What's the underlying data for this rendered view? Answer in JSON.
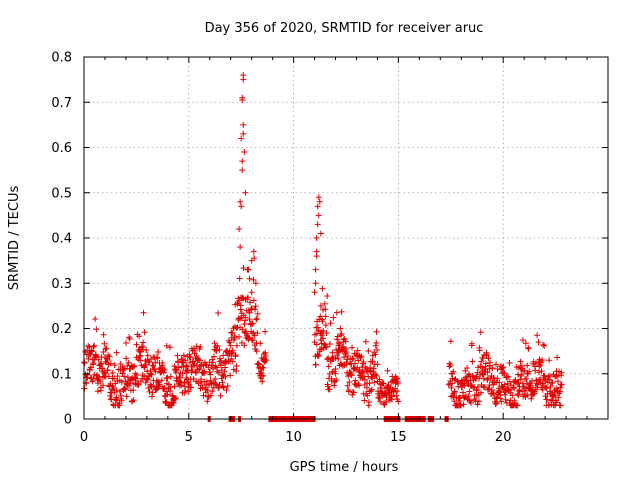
{
  "chart_data": {
    "type": "scatter",
    "title": "Day 356 of 2020, SRMTID for receiver aruc",
    "xlabel": "GPS time / hours",
    "ylabel": "SRMTID / TECUs",
    "xlim": [
      0,
      25
    ],
    "ylim": [
      0,
      0.8
    ],
    "xticks": [
      "0",
      "5",
      "10",
      "15",
      "20"
    ],
    "yticks": [
      "0",
      "0.1",
      "0.2",
      "0.3",
      "0.4",
      "0.5",
      "0.6",
      "0.7",
      "0.8"
    ],
    "grid": true,
    "marker": "+",
    "color": "#e00000",
    "segments": [
      {
        "x_start": 0.0,
        "x_end": 6.2,
        "base": 0.095,
        "spread": 0.04,
        "noise": 0.045
      },
      {
        "x_start": 6.2,
        "x_end": 7.3,
        "base": 0.13,
        "spread": 0.05,
        "noise": 0.05
      },
      {
        "x_start": 7.3,
        "x_end": 8.3,
        "base": 0.2,
        "spread": 0.06,
        "noise": 0.06
      },
      {
        "x_start": 8.3,
        "x_end": 8.7,
        "base": 0.13,
        "spread": 0.03,
        "noise": 0.03
      },
      {
        "x_start": 11.0,
        "x_end": 11.6,
        "base": 0.2,
        "spread": 0.05,
        "noise": 0.05
      },
      {
        "x_start": 11.6,
        "x_end": 14.0,
        "base": 0.11,
        "spread": 0.05,
        "noise": 0.045
      },
      {
        "x_start": 14.0,
        "x_end": 15.0,
        "base": 0.05,
        "spread": 0.03,
        "noise": 0.025
      },
      {
        "x_start": 17.4,
        "x_end": 22.8,
        "base": 0.075,
        "spread": 0.04,
        "noise": 0.04
      }
    ],
    "peaks": [
      {
        "name": "peak-1",
        "x": [
          7.45,
          7.5,
          7.55,
          7.55,
          7.6,
          7.6,
          7.5,
          7.45,
          7.65,
          7.7,
          7.4,
          7.55,
          7.8,
          7.9,
          8.0,
          8.1,
          8.2,
          8.0,
          7.85
        ],
        "y": [
          0.38,
          0.47,
          0.55,
          0.57,
          0.63,
          0.65,
          0.62,
          0.48,
          0.59,
          0.5,
          0.42,
          0.71,
          0.33,
          0.31,
          0.35,
          0.37,
          0.3,
          0.28,
          0.33
        ]
      },
      {
        "name": "peak-1-top",
        "x": [
          7.55,
          7.6,
          7.6
        ],
        "y": [
          0.705,
          0.75,
          0.76
        ]
      },
      {
        "name": "peak-2",
        "x": [
          11.0,
          11.05,
          11.1,
          11.1,
          11.15,
          11.2,
          11.15,
          11.25,
          11.2,
          11.3,
          11.1,
          11.05,
          11.3,
          11.35,
          11.4
        ],
        "y": [
          0.28,
          0.33,
          0.37,
          0.4,
          0.43,
          0.45,
          0.47,
          0.48,
          0.49,
          0.41,
          0.36,
          0.3,
          0.25,
          0.22,
          0.19
        ]
      }
    ],
    "zero_intervals": [
      [
        5.9,
        6.0
      ],
      [
        6.9,
        7.2
      ],
      [
        7.35,
        7.45
      ],
      [
        8.8,
        11.05
      ],
      [
        14.3,
        15.1
      ],
      [
        15.3,
        16.3
      ],
      [
        16.4,
        16.7
      ],
      [
        17.2,
        17.4
      ]
    ]
  }
}
